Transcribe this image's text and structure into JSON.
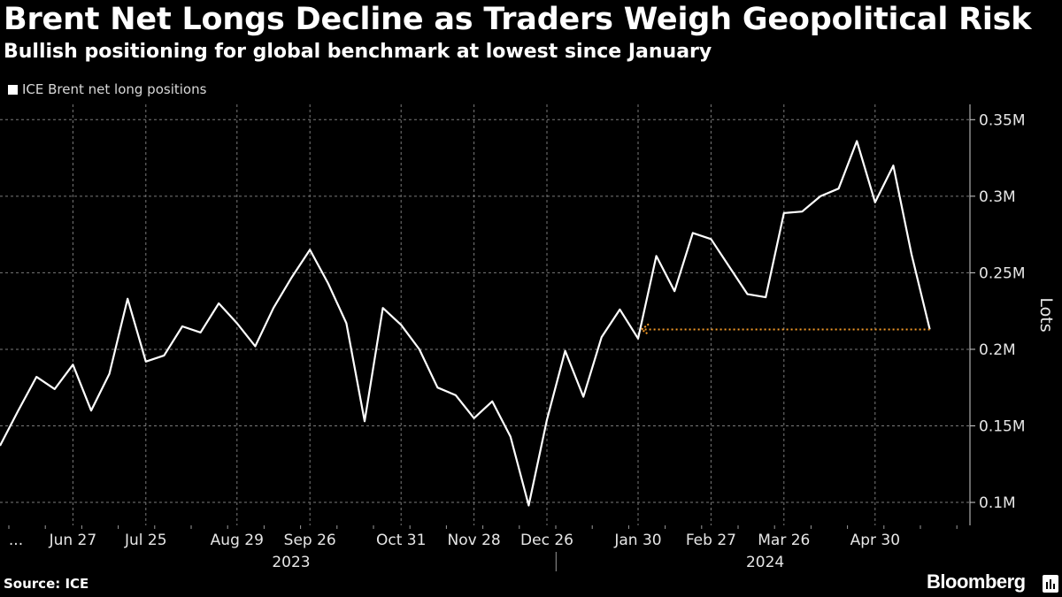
{
  "chart_data": {
    "type": "line",
    "title": "Brent Net Longs Decline as Traders Weigh Geopolitical Risk",
    "subtitle": "Bullish positioning for global benchmark at lowest since January",
    "legend": [
      "ICE Brent net long positions"
    ],
    "ylabel": "Lots",
    "ylim": [
      0.085,
      0.36
    ],
    "yticks": [
      0.1,
      0.15,
      0.2,
      0.25,
      0.3,
      0.35
    ],
    "ytick_labels": [
      "0.1M",
      "0.15M",
      "0.2M",
      "0.25M",
      "0.3M",
      "0.35M"
    ],
    "x_week_range": [
      0,
      52
    ],
    "xticks": [
      {
        "label": "...",
        "week": 0
      },
      {
        "label": "Jun 27",
        "week": 4
      },
      {
        "label": "Jul 25",
        "week": 8
      },
      {
        "label": "Aug 29",
        "week": 13
      },
      {
        "label": "Sep 26",
        "week": 17
      },
      {
        "label": "Oct 31",
        "week": 22
      },
      {
        "label": "Nov 28",
        "week": 26
      },
      {
        "label": "Dec 26",
        "week": 30
      },
      {
        "label": "Jan 30",
        "week": 35
      },
      {
        "label": "Feb 27",
        "week": 39
      },
      {
        "label": "Mar 26",
        "week": 43
      },
      {
        "label": "Apr 30",
        "week": 48
      }
    ],
    "year_labels": [
      {
        "label": "2023",
        "week": 15
      },
      {
        "label": "2024",
        "week": 41
      }
    ],
    "year_divider_week": 30.5,
    "series": [
      {
        "name": "ICE Brent net long positions",
        "color": "#ffffff",
        "values": [
          0.137,
          0.16,
          0.182,
          0.174,
          0.19,
          0.16,
          0.184,
          0.233,
          0.192,
          0.196,
          0.215,
          0.211,
          0.23,
          0.217,
          0.202,
          0.227,
          0.247,
          0.265,
          0.243,
          0.217,
          0.153,
          0.227,
          0.216,
          0.2,
          0.175,
          0.17,
          0.155,
          0.166,
          0.143,
          0.098,
          0.154,
          0.199,
          0.169,
          0.208,
          0.226,
          0.207,
          0.261,
          0.238,
          0.276,
          0.272,
          0.254,
          0.236,
          0.234,
          0.289,
          0.29,
          0.3,
          0.305,
          0.336,
          0.296,
          0.32,
          0.262,
          0.213
        ]
      }
    ],
    "annotation": {
      "type": "arrow",
      "color": "#f39a28",
      "y": 0.213,
      "from_week": 51,
      "to_week": 35
    }
  },
  "footer": {
    "source": "Source: ICE",
    "brand": "Bloomberg"
  }
}
